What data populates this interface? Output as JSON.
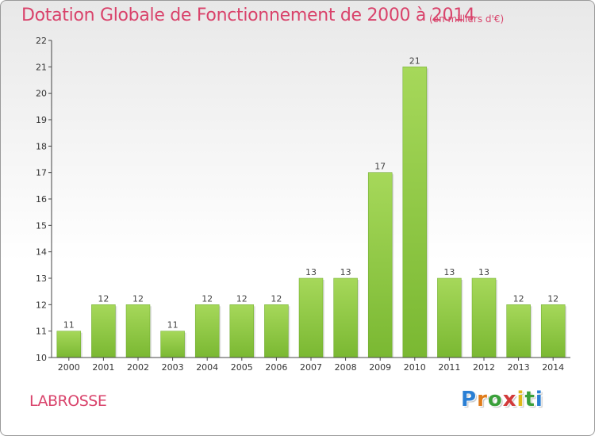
{
  "header": {
    "title": "Dotation Globale de Fonctionnement de 2000 à 2014",
    "unit": "(en milliers d'€)"
  },
  "footer": {
    "commune": "LABROSSE",
    "logo_letters": [
      {
        "char": "P",
        "color": "#2a7fd4"
      },
      {
        "char": "r",
        "color": "#e07b1a"
      },
      {
        "char": "o",
        "color": "#3aa03a"
      },
      {
        "char": "x",
        "color": "#d23a3a"
      },
      {
        "char": "i",
        "color": "#e0b81a"
      },
      {
        "char": "t",
        "color": "#3aa03a"
      },
      {
        "char": "i",
        "color": "#2a7fd4"
      }
    ]
  },
  "chart_data": {
    "type": "bar",
    "categories": [
      "2000",
      "2001",
      "2002",
      "2003",
      "2004",
      "2005",
      "2006",
      "2007",
      "2008",
      "2009",
      "2010",
      "2011",
      "2012",
      "2013",
      "2014"
    ],
    "values": [
      11,
      12,
      12,
      11,
      12,
      12,
      12,
      13,
      13,
      17,
      21,
      13,
      13,
      12,
      12
    ],
    "title": "Dotation Globale de Fonctionnement de 2000 à 2014",
    "ylim": [
      10,
      22
    ],
    "yticks": [
      10,
      11,
      12,
      13,
      14,
      15,
      16,
      17,
      18,
      19,
      20,
      21,
      22
    ],
    "grid": false,
    "bar_color": "#7ab832",
    "bar_color_light": "#a6d85a"
  }
}
